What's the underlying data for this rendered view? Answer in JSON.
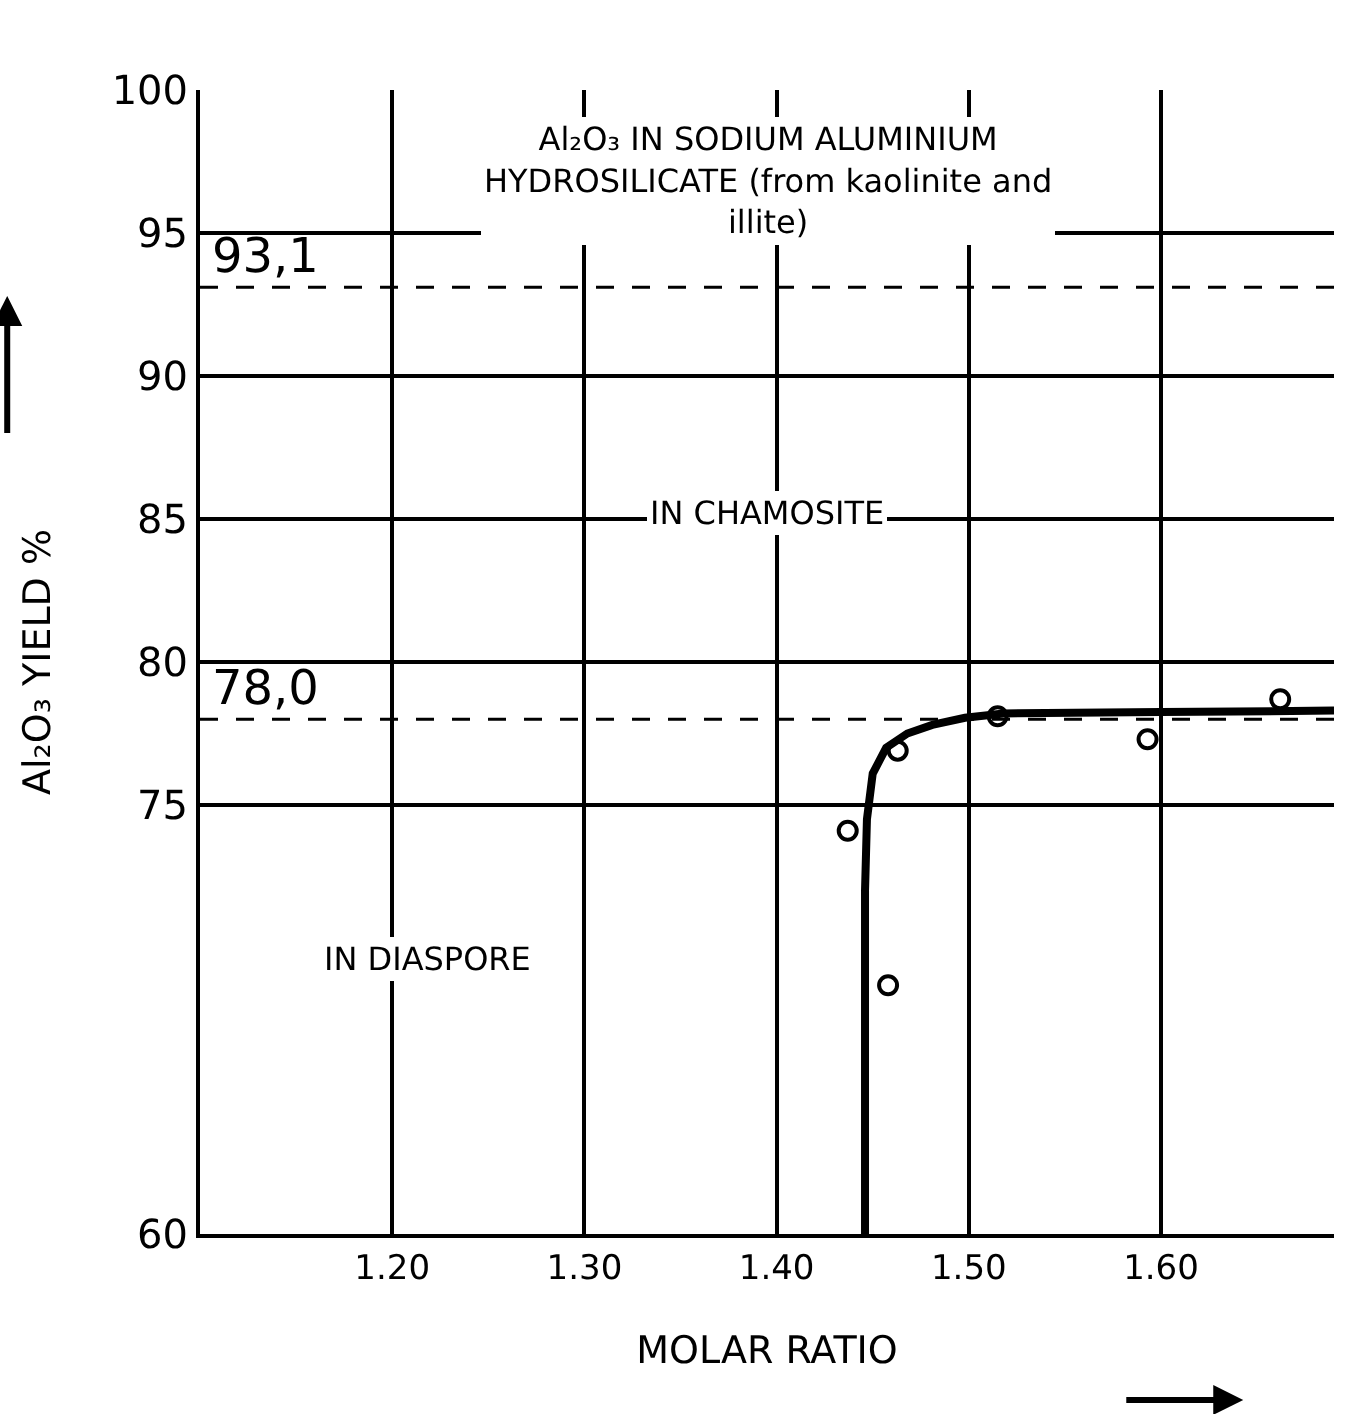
{
  "chart_data": {
    "type": "line",
    "xlabel": "MOLAR RATIO",
    "ylabel": "Al₂O₃ YIELD %",
    "xlim": [
      1.1,
      1.69
    ],
    "xticks": [
      {
        "value": 1.2,
        "label": "1.20"
      },
      {
        "value": 1.3,
        "label": "1.30"
      },
      {
        "value": 1.4,
        "label": "1.40"
      },
      {
        "value": 1.5,
        "label": "1.50"
      },
      {
        "value": 1.6,
        "label": "1.60"
      }
    ],
    "ylim": [
      60,
      100
    ],
    "yticks": [
      60,
      75,
      80,
      85,
      90,
      95,
      100
    ],
    "grid": true,
    "series": [
      {
        "color": "#000000",
        "marker": "none",
        "line_style": "solid",
        "x": [
          1.446,
          1.446,
          1.447,
          1.45,
          1.457,
          1.468,
          1.481,
          1.498,
          1.518,
          1.6,
          1.69
        ],
        "values": [
          60,
          72,
          74.5,
          76.1,
          77.0,
          77.5,
          77.8,
          78.05,
          78.2,
          78.25,
          78.3
        ]
      },
      {
        "type": "scatter",
        "color": "#000000",
        "marker": "circle",
        "x": [
          1.437,
          1.458,
          1.463,
          1.515,
          1.593,
          1.662
        ],
        "values": [
          74.1,
          68.7,
          76.9,
          78.1,
          77.3,
          78.7
        ]
      }
    ],
    "ref_lines": [
      {
        "axis": "y",
        "value": 93.1,
        "label": "93,1",
        "line_style": "dashed",
        "color": "#000000"
      },
      {
        "axis": "y",
        "value": 78.0,
        "label": "78,0",
        "line_style": "dashed",
        "color": "#000000"
      }
    ],
    "annotations": [
      "Al₂O₃ IN SODIUM ALUMINIUM HYDROSILICATE (from kaolinite and illite)",
      "IN CHAMOSITE",
      "IN DIASPORE"
    ]
  }
}
